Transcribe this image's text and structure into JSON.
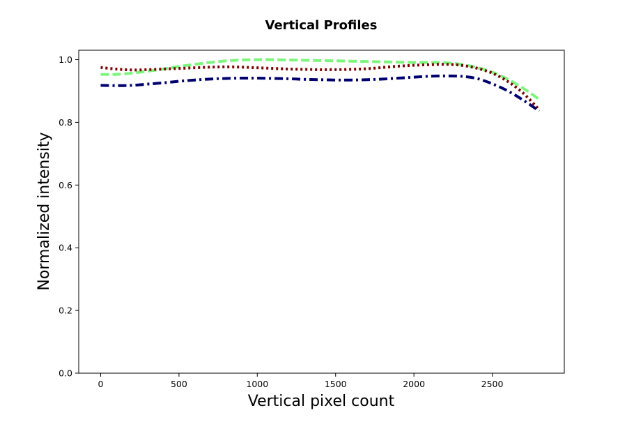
{
  "chart_data": {
    "type": "line",
    "title": "Vertical Profiles",
    "xlabel": "Vertical pixel count",
    "ylabel": "Normalized intensity",
    "xlim": [
      -140,
      2960
    ],
    "ylim": [
      0.0,
      1.03
    ],
    "xticks": [
      0,
      500,
      1000,
      1500,
      2000,
      2500
    ],
    "yticks": [
      0.0,
      0.2,
      0.4,
      0.6,
      0.8,
      1.0
    ],
    "xtick_labels": [
      "0",
      "500",
      "1000",
      "1500",
      "2000",
      "2500"
    ],
    "ytick_labels": [
      "0.0",
      "0.2",
      "0.4",
      "0.6",
      "0.8",
      "1.0"
    ],
    "grid": false,
    "legend": false,
    "x": [
      0,
      100,
      200,
      300,
      400,
      500,
      600,
      700,
      800,
      900,
      1000,
      1100,
      1200,
      1300,
      1400,
      1500,
      1600,
      1700,
      1800,
      1900,
      2000,
      2100,
      2200,
      2300,
      2400,
      2500,
      2600,
      2700,
      2800
    ],
    "series": [
      {
        "color": "#7CF57C",
        "linestyle": "dashed",
        "values": [
          0.953,
          0.953,
          0.957,
          0.963,
          0.97,
          0.978,
          0.985,
          0.991,
          0.996,
          0.999,
          1.0,
          1.0,
          0.999,
          0.998,
          0.997,
          0.996,
          0.995,
          0.994,
          0.993,
          0.992,
          0.991,
          0.991,
          0.99,
          0.985,
          0.975,
          0.96,
          0.937,
          0.908,
          0.873
        ]
      },
      {
        "color": "#7B0000",
        "linestyle": "dotted",
        "values": [
          0.975,
          0.97,
          0.967,
          0.968,
          0.97,
          0.972,
          0.974,
          0.976,
          0.977,
          0.976,
          0.974,
          0.972,
          0.97,
          0.969,
          0.968,
          0.968,
          0.969,
          0.971,
          0.975,
          0.979,
          0.982,
          0.984,
          0.985,
          0.982,
          0.973,
          0.957,
          0.93,
          0.892,
          0.84
        ]
      },
      {
        "color": "#00006E",
        "linestyle": "dashdot",
        "values": [
          0.918,
          0.917,
          0.918,
          0.922,
          0.926,
          0.931,
          0.935,
          0.938,
          0.94,
          0.941,
          0.941,
          0.94,
          0.939,
          0.937,
          0.936,
          0.935,
          0.935,
          0.936,
          0.938,
          0.941,
          0.944,
          0.947,
          0.948,
          0.947,
          0.94,
          0.923,
          0.9,
          0.87,
          0.836
        ]
      }
    ]
  }
}
